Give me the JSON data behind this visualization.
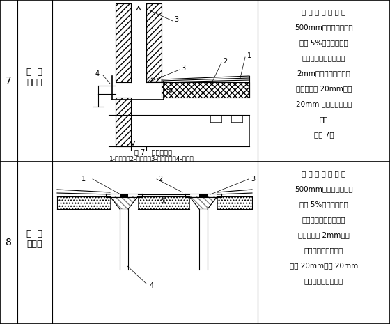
{
  "bg_color": "#ffffff",
  "row1": {
    "number": "7",
    "label_line1": "横  式",
    "label_line2": "水落口",
    "caption": "图 7   横式水落口",
    "legend": "1-防水层；2-附加层；3-密封材料；4-水落口"
  },
  "row2": {
    "number": "8",
    "label_line1": "直  式",
    "label_line2": "水落口"
  },
  "right_text1": [
    "水 落 口 周 围 直 径",
    "500mm，范围内坡度不",
    "小于 5%，并用防水涂",
    "料涂封，其厚度不小于",
    "2mm。水落口杯与基层",
    "接触处留宽 20mm、深",
    "20mm 凹槽，嵌填密封",
    "材料",
    "（图 7）"
  ],
  "right_text2": [
    "水 落 口 周 围 直 径",
    "500mm，范围内坡度不",
    "小于 5%，并用防水涂",
    "料或密封材料涂封，其",
    "厚度不小于 2mm。水",
    "落口杯与基层接触处",
    "留宽 20mm、深 20mm",
    "凹槽，嵌填密封材料"
  ]
}
